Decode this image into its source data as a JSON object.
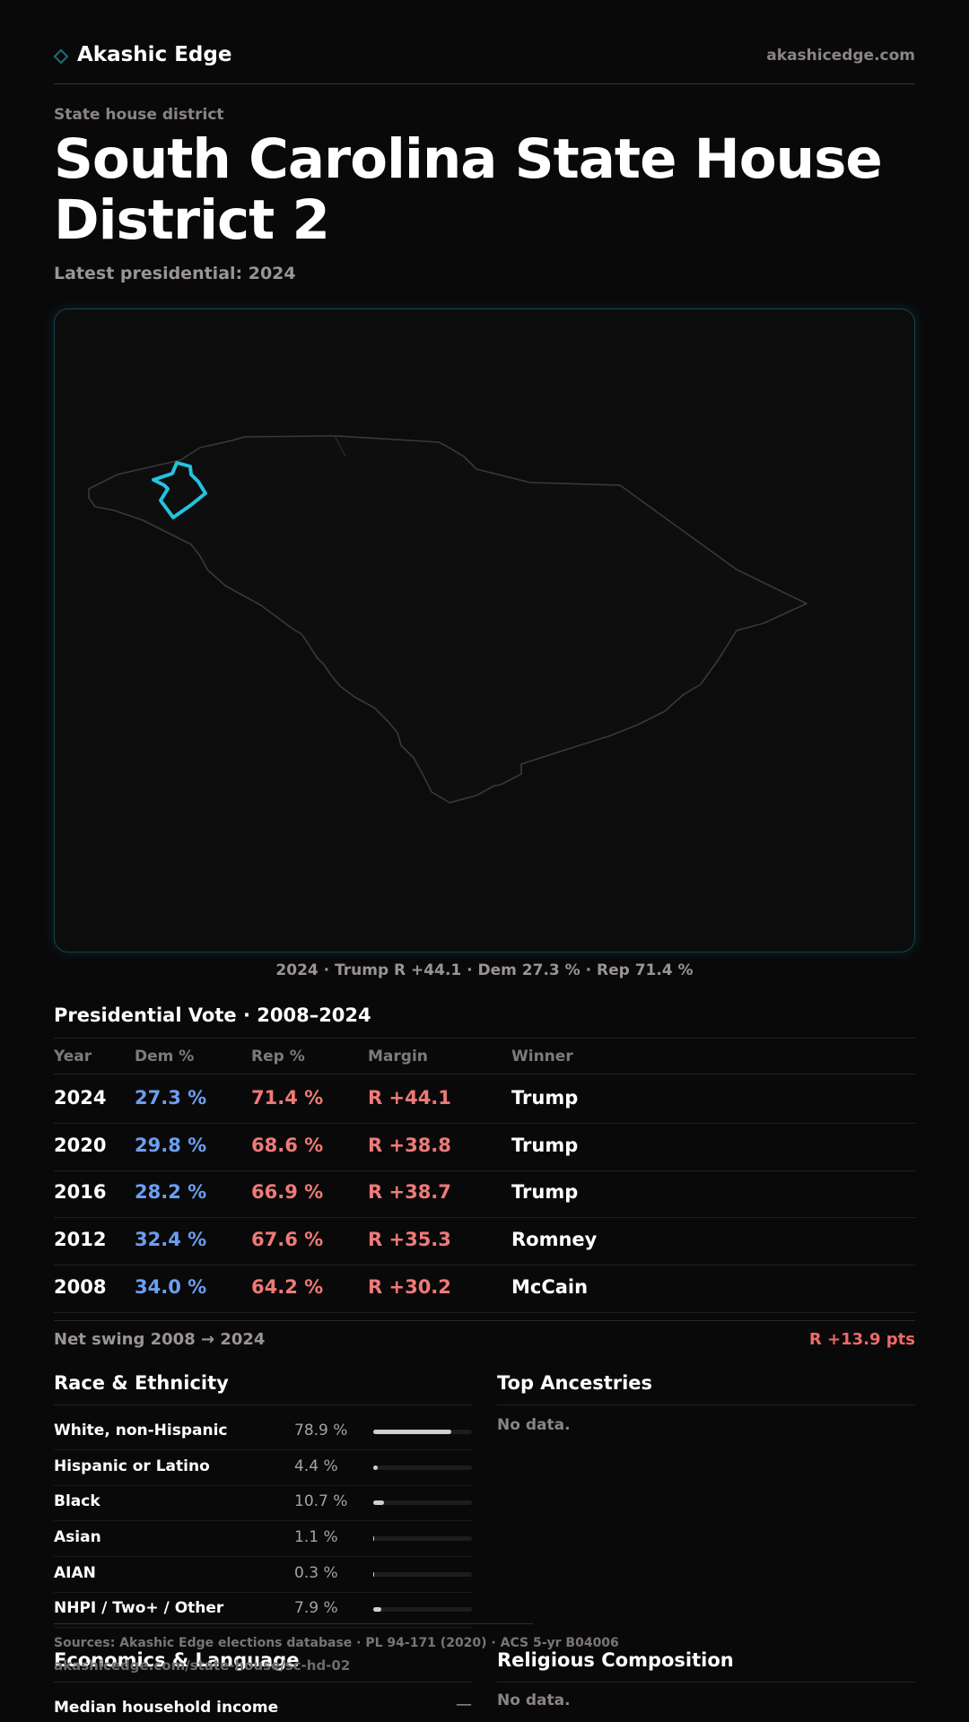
{
  "header": {
    "brand": "Akashic Edge",
    "site": "akashicedge.com"
  },
  "page": {
    "kicker": "State house district",
    "title": "South Carolina State House District 2",
    "subtitle": "Latest presidential: 2024"
  },
  "map": {
    "caption": "2024 · Trump R +44.1 · Dem 27.3 % · Rep 71.4 %"
  },
  "presidential": {
    "title": "Presidential Vote · 2008–2024",
    "columns": [
      "Year",
      "Dem %",
      "Rep %",
      "Margin",
      "Winner"
    ],
    "rows": [
      {
        "year": "2024",
        "dem": "27.3 %",
        "rep": "71.4 %",
        "margin": "R +44.1",
        "winner": "Trump"
      },
      {
        "year": "2020",
        "dem": "29.8 %",
        "rep": "68.6 %",
        "margin": "R +38.8",
        "winner": "Trump"
      },
      {
        "year": "2016",
        "dem": "28.2 %",
        "rep": "66.9 %",
        "margin": "R +38.7",
        "winner": "Trump"
      },
      {
        "year": "2012",
        "dem": "32.4 %",
        "rep": "67.6 %",
        "margin": "R +35.3",
        "winner": "Romney"
      },
      {
        "year": "2008",
        "dem": "34.0 %",
        "rep": "64.2 %",
        "margin": "R +30.2",
        "winner": "McCain"
      }
    ],
    "swing_label": "Net swing 2008 → 2024",
    "swing_value": "R +13.9 pts"
  },
  "race": {
    "title": "Race & Ethnicity",
    "rows": [
      {
        "label": "White, non-Hispanic",
        "value": "78.9 %",
        "share": 0.789
      },
      {
        "label": "Hispanic or Latino",
        "value": "4.4 %",
        "share": 0.044
      },
      {
        "label": "Black",
        "value": "10.7 %",
        "share": 0.107
      },
      {
        "label": "Asian",
        "value": "1.1 %",
        "share": 0.011
      },
      {
        "label": "AIAN",
        "value": "0.3 %",
        "share": 0.003
      },
      {
        "label": "NHPI / Two+ / Other",
        "value": "7.9 %",
        "share": 0.079
      }
    ]
  },
  "ancestries": {
    "title": "Top Ancestries",
    "empty": "No data."
  },
  "economics": {
    "title": "Economics & Language",
    "median_label": "Median household income",
    "median_value": "—"
  },
  "religion": {
    "title": "Religious Composition",
    "empty": "No data."
  },
  "footer": {
    "sources": "Sources: Akashic Edge elections database · PL 94-171 (2020) · ACS 5-yr B04006",
    "url": "akashicedge.com/state-house/sc-hd-02"
  },
  "colors": {
    "accent": "#22c4e0",
    "dem": "#6a9ff0",
    "rep": "#ee7a78",
    "background": "#0a090a"
  }
}
